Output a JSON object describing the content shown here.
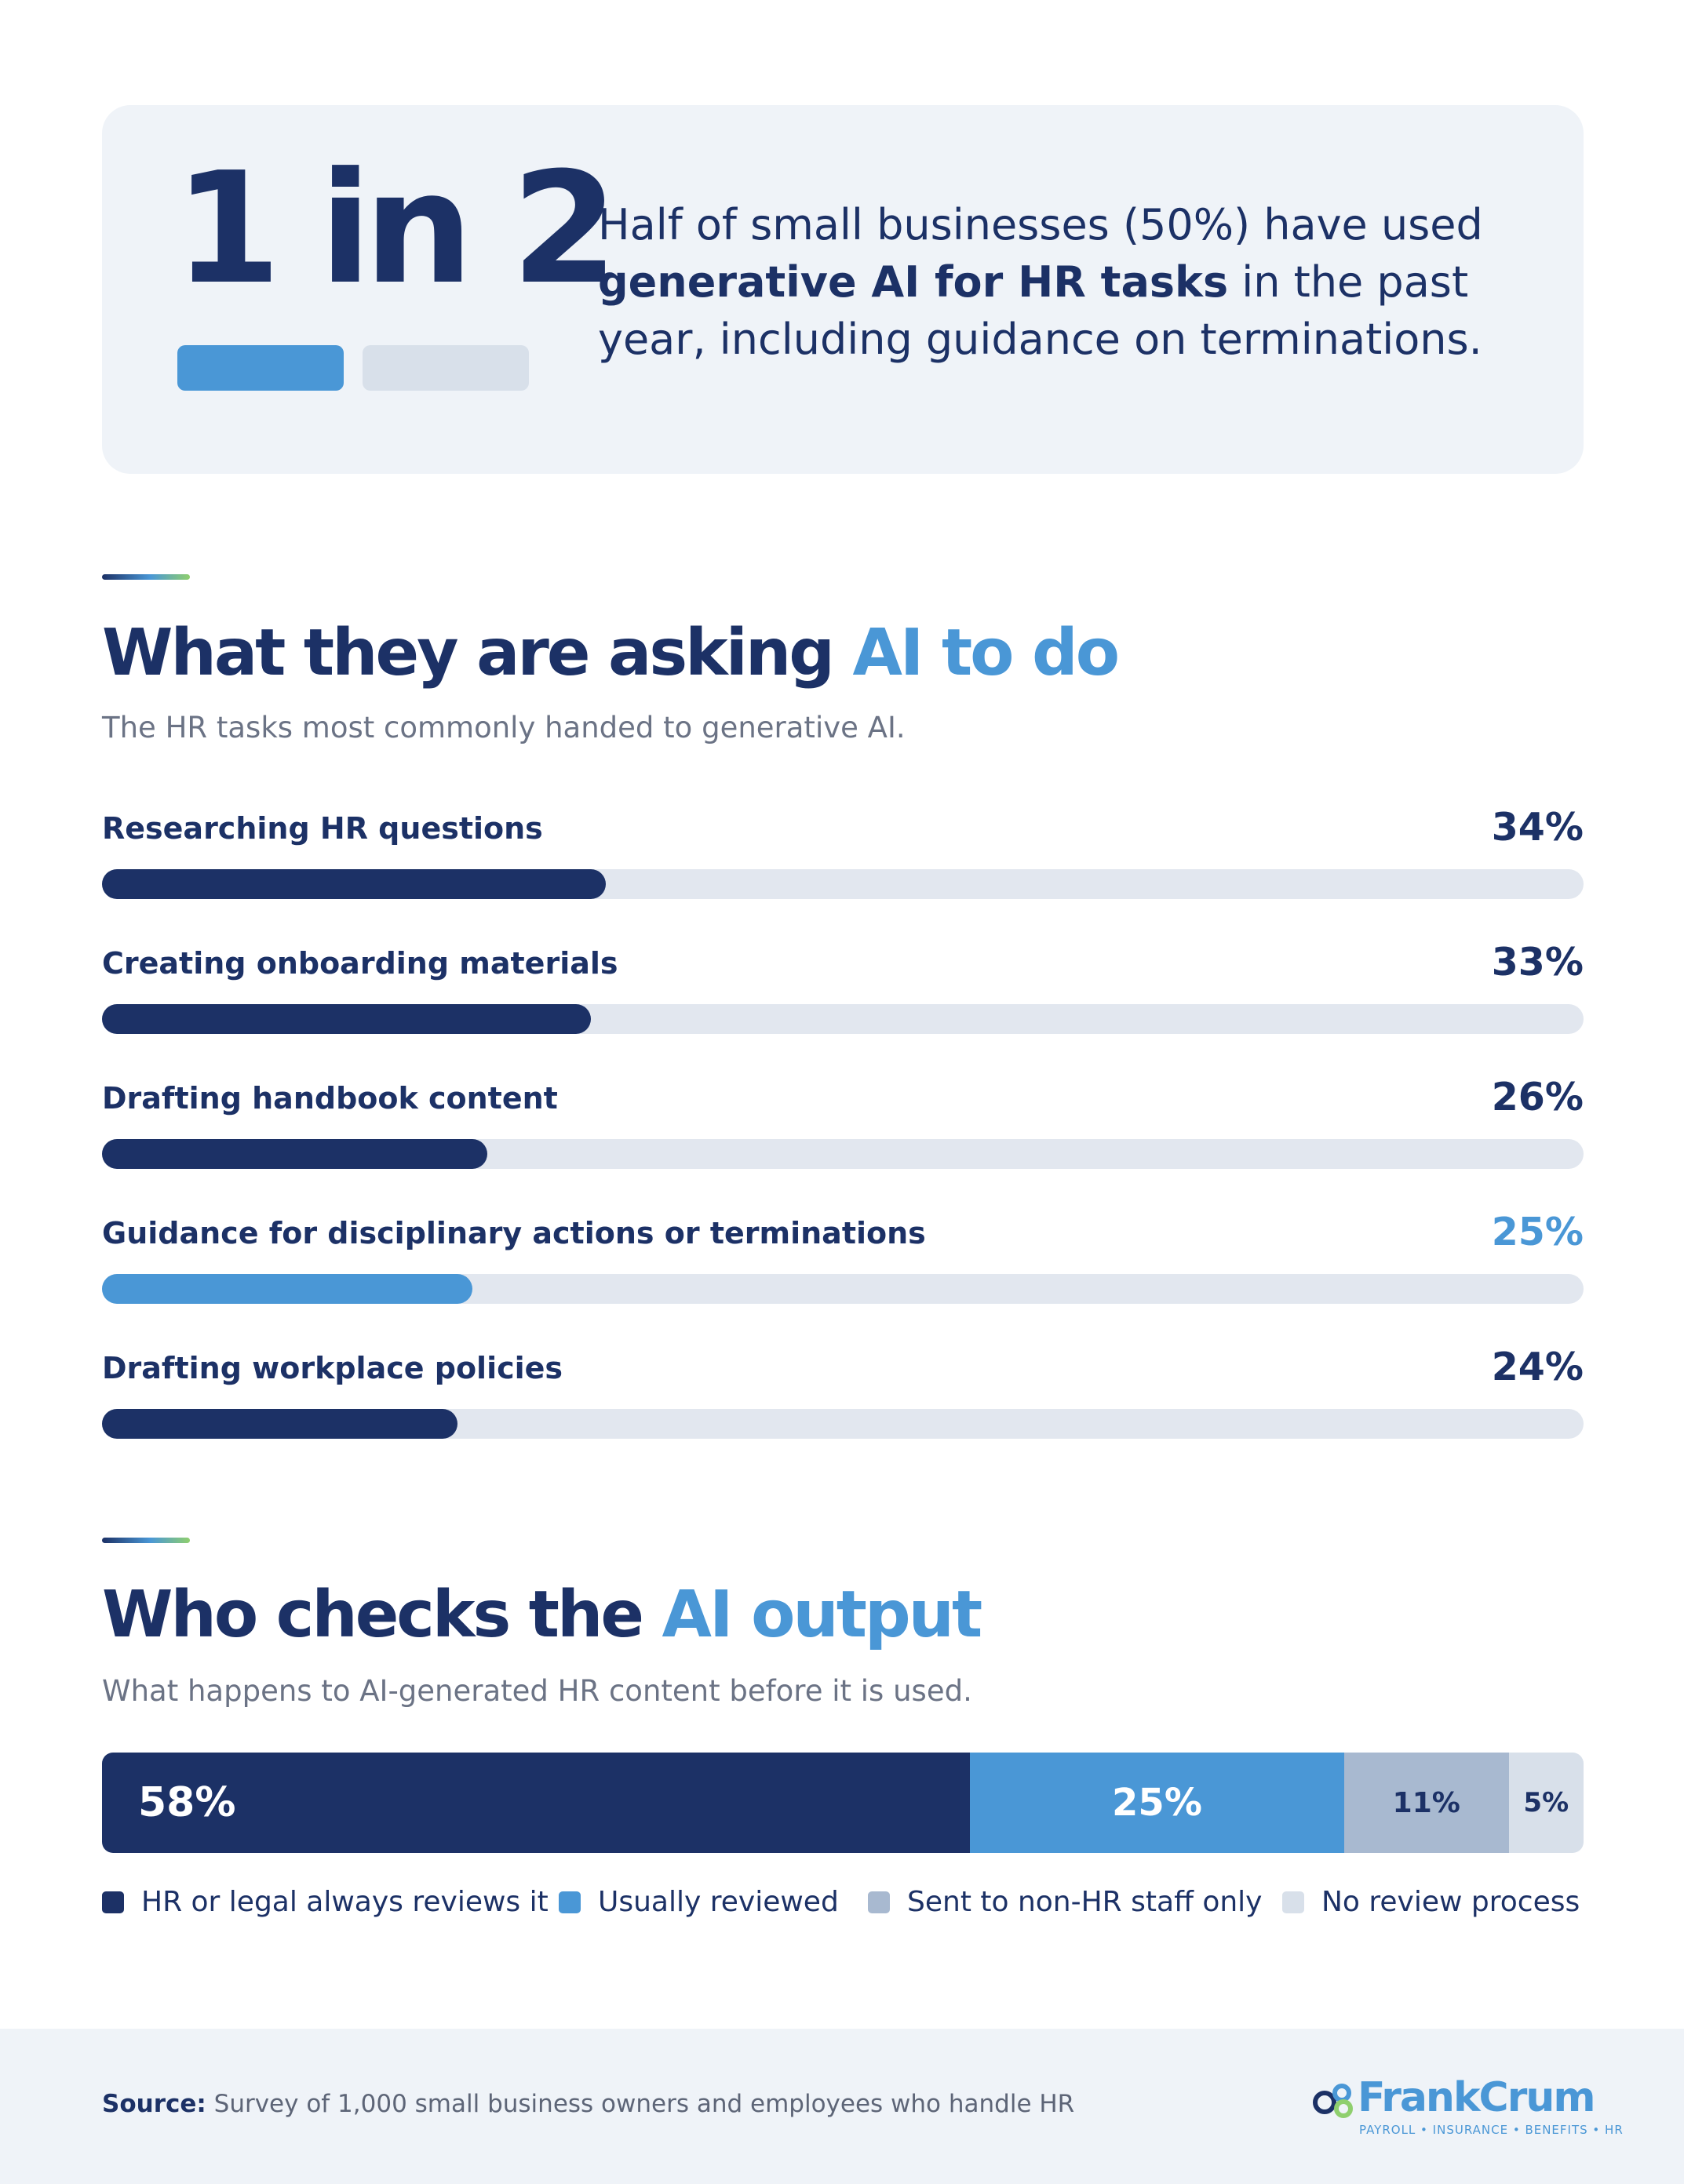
{
  "colors": {
    "navy": "#1c3166",
    "blue": "#4a97d6",
    "gray_blue": "#a8b9d0",
    "light_gray": "#d8e0ea",
    "track": "#e2e7ef"
  },
  "hero": {
    "stat": "1 in 2",
    "text_pre": "Half of small businesses (50%) have used ",
    "text_bold": "generative AI for HR tasks",
    "text_post": " in the past year, including guidance on terminations."
  },
  "section1": {
    "title_dark": "What they are asking ",
    "title_blue": "AI to do",
    "subtitle": "The HR tasks most commonly handed to generative AI."
  },
  "section2": {
    "title_dark": "Who checks the ",
    "title_blue": "AI output",
    "subtitle": "What happens to AI-generated HR content before it is used."
  },
  "chart_data": [
    {
      "type": "bar",
      "orientation": "horizontal",
      "categories": [
        "Researching HR questions",
        "Creating onboarding materials",
        "Drafting handbook content",
        "Guidance for disciplinary actions or terminations",
        "Drafting workplace policies"
      ],
      "values": [
        34,
        33,
        26,
        25,
        24
      ],
      "value_labels": [
        "34%",
        "33%",
        "26%",
        "25%",
        "24%"
      ],
      "highlight_index": 3,
      "xlim": [
        0,
        100
      ]
    },
    {
      "type": "bar",
      "orientation": "horizontal",
      "stacked": true,
      "series": [
        {
          "name": "HR or legal always reviews it",
          "value": 58,
          "label": "58%",
          "color": "#1c3166"
        },
        {
          "name": "Usually reviewed",
          "value": 25,
          "label": "25%",
          "color": "#4a97d6"
        },
        {
          "name": "Sent to non-HR staff only",
          "value": 11,
          "label": "11%",
          "color": "#a8b9d0"
        },
        {
          "name": "No review process",
          "value": 5,
          "label": "5%",
          "color": "#d8e0ea"
        }
      ],
      "legend_position": "bottom"
    }
  ],
  "footer": {
    "source_label": "Source:",
    "source_text": " Survey of 1,000 small business owners and employees who handle HR",
    "logo_word": "FrankCrum",
    "logo_tagline": "PAYROLL • INSURANCE • BENEFITS • HR"
  }
}
